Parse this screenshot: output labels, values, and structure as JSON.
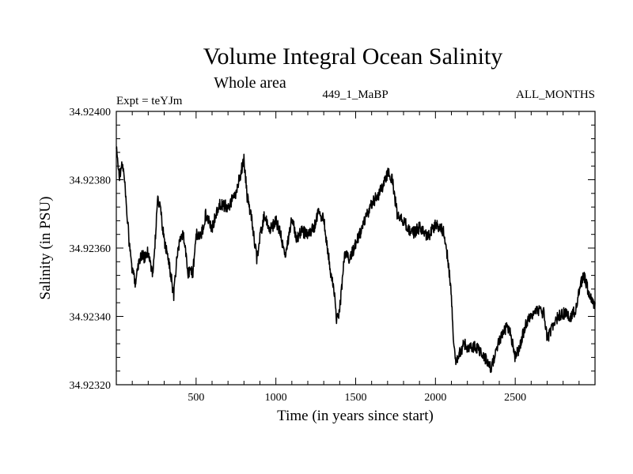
{
  "chart_data": {
    "type": "line",
    "title": "Volume Integral Ocean Salinity",
    "subtitle": "Whole area",
    "header_left": "Expt = teYJm",
    "header_center": "449_1_MaBP",
    "header_right": "ALL_MONTHS",
    "xlabel": "Time (in years since start)",
    "ylabel": "Salinity (in PSU)",
    "xlim": [
      0,
      3000
    ],
    "ylim": [
      34.9232,
      34.924
    ],
    "x_ticks": [
      500,
      1000,
      1500,
      2000,
      2500
    ],
    "x_tick_labels": [
      "500",
      "1000",
      "1500",
      "2000",
      "2500"
    ],
    "y_ticks": [
      34.9232,
      34.9234,
      34.9236,
      34.9238,
      34.924
    ],
    "y_tick_labels": [
      "34.92320",
      "34.92340",
      "34.92360",
      "34.92380",
      "34.92400"
    ],
    "series": [
      {
        "name": "Salinity",
        "color": "#000000",
        "x": [
          0,
          20,
          40,
          60,
          80,
          100,
          120,
          140,
          160,
          180,
          200,
          230,
          260,
          280,
          300,
          330,
          360,
          380,
          400,
          420,
          450,
          480,
          500,
          530,
          560,
          600,
          650,
          700,
          750,
          780,
          800,
          820,
          850,
          880,
          900,
          930,
          960,
          1000,
          1030,
          1060,
          1100,
          1130,
          1160,
          1200,
          1240,
          1270,
          1300,
          1330,
          1350,
          1370,
          1380,
          1400,
          1430,
          1460,
          1500,
          1550,
          1600,
          1650,
          1700,
          1730,
          1760,
          1800,
          1850,
          1900,
          1950,
          2000,
          2050,
          2080,
          2100,
          2110,
          2120,
          2130,
          2150,
          2180,
          2200,
          2250,
          2300,
          2330,
          2350,
          2380,
          2400,
          2430,
          2460,
          2500,
          2530,
          2560,
          2600,
          2640,
          2680,
          2700,
          2750,
          2800,
          2850,
          2880,
          2900,
          2930,
          2960,
          2980,
          3000
        ],
        "values": [
          34.92389,
          34.92381,
          34.92385,
          34.92375,
          34.92362,
          34.92353,
          34.9235,
          34.92356,
          34.92358,
          34.92357,
          34.92359,
          34.92352,
          34.92375,
          34.9237,
          34.92362,
          34.92356,
          34.92346,
          34.92357,
          34.92363,
          34.92364,
          34.92353,
          34.92353,
          34.92364,
          34.92363,
          34.9237,
          34.92366,
          34.92373,
          34.92372,
          34.92376,
          34.92382,
          34.92386,
          34.92375,
          34.92368,
          34.92357,
          34.92363,
          34.9237,
          34.92365,
          34.92368,
          34.92364,
          34.92357,
          34.92369,
          34.92363,
          34.92365,
          34.92364,
          34.92366,
          34.92371,
          34.92368,
          34.92358,
          34.92351,
          34.92346,
          34.92338,
          34.92342,
          34.92358,
          34.92357,
          34.92361,
          34.92367,
          34.92373,
          34.92376,
          34.92382,
          34.9238,
          34.9237,
          34.92368,
          34.92364,
          34.92366,
          34.92363,
          34.92367,
          34.92365,
          34.92356,
          34.92346,
          34.92336,
          34.9233,
          34.92326,
          34.92329,
          34.92332,
          34.92331,
          34.92331,
          34.92329,
          34.92326,
          34.92325,
          34.92329,
          34.92333,
          34.92336,
          34.92337,
          34.92328,
          34.92331,
          34.92337,
          34.9234,
          34.92342,
          34.92341,
          34.92333,
          34.92339,
          34.92341,
          34.9234,
          34.92342,
          34.92348,
          34.92352,
          34.92347,
          34.92345,
          34.92343
        ]
      }
    ]
  }
}
